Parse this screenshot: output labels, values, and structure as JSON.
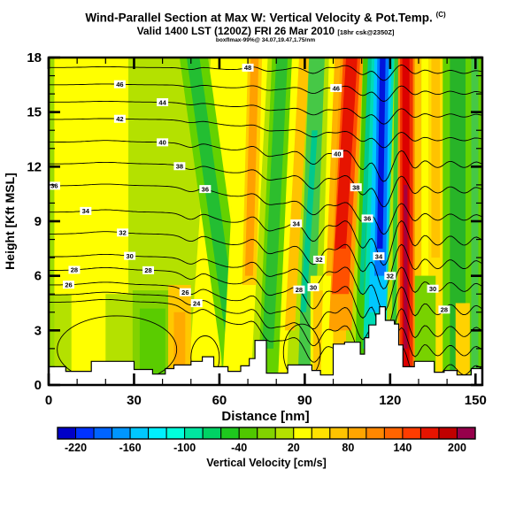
{
  "title": {
    "line1": "Wind-Parallel Section at Max W: Vertical Velocity & Pot.Temp.",
    "line1_sup": "(C)",
    "line2": "Valid 1400 LST (1200Z) FRI 26 Mar 2010",
    "line2_note": "[18hr csk@2350Z]",
    "line3": "boxflmax-99%@ 34.07,19.47,1.75/nm"
  },
  "axes": {
    "x_label": "Distance [nm]",
    "y_label": "Height [Kft MSL]",
    "x_ticks": [
      0,
      30,
      60,
      90,
      120,
      150
    ],
    "x_minor_ticks": [
      10,
      20,
      40,
      50,
      70,
      80,
      100,
      110,
      130,
      140
    ],
    "y_ticks": [
      0,
      3,
      6,
      9,
      12,
      15,
      18
    ],
    "y_minor_ticks": [
      1,
      2,
      4,
      5,
      7,
      8,
      10,
      11,
      13,
      14,
      16,
      17
    ]
  },
  "colorbar": {
    "caption": "Vertical Velocity [cm/s]",
    "min": -240,
    "max": 220,
    "step": 20,
    "colors": [
      "#0000C8",
      "#0032FF",
      "#0064FF",
      "#0096FF",
      "#00C8FF",
      "#00F0FF",
      "#00FFDC",
      "#00E6A0",
      "#00D264",
      "#1EC81E",
      "#50C800",
      "#82D200",
      "#B4E100",
      "#FFFF00",
      "#FFE100",
      "#FFC300",
      "#FFA500",
      "#FF8700",
      "#FF6400",
      "#FF3C00",
      "#E61400",
      "#C00000",
      "#96004B"
    ],
    "labels": [
      -220,
      -160,
      -100,
      -40,
      20,
      80,
      140,
      200
    ],
    "label_boundary_index": [
      1,
      4,
      7,
      10,
      13,
      16,
      19,
      22
    ]
  },
  "chart_data": {
    "type": "filled-contour-cross-section",
    "x_unit": "nm",
    "x_range": [
      0,
      152.4
    ],
    "y_unit": "Kft MSL",
    "y_range": [
      0,
      18
    ],
    "fill_field": "vertical velocity [cm/s]",
    "line_field": "potential temperature [C]",
    "background_color": "#B4E100",
    "stripes": [
      {
        "x0": 0,
        "x1": 2,
        "c": "#9CDC00"
      },
      {
        "x0": 2,
        "x1": 28,
        "c": "#FFFF00",
        "yb": 5.0
      },
      {
        "x0": 8,
        "x1": 20,
        "c": "#FFFF00",
        "yt": 5.2,
        "yb": 0
      },
      {
        "x0": 57,
        "x1": 68,
        "c": "#FFFF00",
        "dx": -8
      },
      {
        "x0": 29.5,
        "x1": 43.5,
        "c": "#82D200",
        "yt": 5.2,
        "yb": 0
      },
      {
        "x0": 32,
        "x1": 41,
        "c": "#5ACC00",
        "yt": 4.2,
        "yb": 0
      },
      {
        "x0": 46,
        "x1": 56,
        "c": "#64D200",
        "dx": 16
      },
      {
        "x0": 48.5,
        "x1": 53,
        "c": "#23BE32",
        "dx": 16
      },
      {
        "x0": 63.5,
        "x1": 67.5,
        "c": "#FFC800",
        "yt": 2.2,
        "yb": 0.6
      },
      {
        "x0": 42,
        "x1": 50,
        "c": "#FFC800",
        "yt": 5.5,
        "yb": 0
      },
      {
        "x0": 44,
        "x1": 48,
        "c": "#FFAA00",
        "yt": 4,
        "yb": 0
      },
      {
        "x0": 67,
        "x1": 77,
        "c": "#FFFF00",
        "dx": -6
      },
      {
        "x0": 70,
        "x1": 75,
        "c": "#FFCD00",
        "dx": -2,
        "yb": 5.5
      },
      {
        "x0": 71,
        "x1": 73.8,
        "c": "#FFA000",
        "dx": -2,
        "yb": 6
      },
      {
        "x0": 78.5,
        "x1": 86,
        "c": "#64D200",
        "dx": -5
      },
      {
        "x0": 80,
        "x1": 84,
        "c": "#2DBE2D",
        "dx": -5,
        "yb": 2
      },
      {
        "x0": 85.5,
        "x1": 88.5,
        "c": "#FFFF00",
        "dx": -5
      },
      {
        "x0": 88,
        "x1": 91.5,
        "c": "#FFC300",
        "dx": -5,
        "yb": 3
      },
      {
        "x0": 91.5,
        "x1": 97,
        "c": "#46C846",
        "dx": -4
      },
      {
        "x0": 92.5,
        "x1": 94.5,
        "c": "#00C88C",
        "dx": -4,
        "yt": 14,
        "yb": 4
      },
      {
        "x0": 92,
        "x1": 99.5,
        "c": "#F5F500",
        "yt": 6,
        "yb": 0
      },
      {
        "x0": 93,
        "x1": 98,
        "c": "#FFC800",
        "yt": 5.2,
        "yb": 0
      },
      {
        "x0": 98.5,
        "x1": 103,
        "c": "#FFFF00",
        "dx": -3
      },
      {
        "x0": 100.5,
        "x1": 103,
        "c": "#FFB400",
        "dx": -3,
        "yb": 6
      },
      {
        "x0": 100,
        "x1": 104.5,
        "c": "#FFC800",
        "yt": 4,
        "yb": 0
      },
      {
        "x0": 102.5,
        "x1": 110.5,
        "c": "#FFA000",
        "dx": -4,
        "yb": 3
      },
      {
        "x0": 103.5,
        "x1": 109.5,
        "c": "#FF5000",
        "dx": -4,
        "yb": 5
      },
      {
        "x0": 104.5,
        "x1": 108.5,
        "c": "#E61400",
        "dx": -4,
        "yb": 7.5
      },
      {
        "x0": 110.5,
        "x1": 113.5,
        "c": "#46C800",
        "dx": -3
      },
      {
        "x0": 112.2,
        "x1": 113.8,
        "c": "#00C88C",
        "dx": -3,
        "yb": 5
      },
      {
        "x0": 113.5,
        "x1": 121.5,
        "c": "#00DCB4",
        "dx": -3,
        "yb": 2
      },
      {
        "x0": 114.5,
        "x1": 120.5,
        "c": "#00C8FF",
        "dx": -2,
        "yb": 4
      },
      {
        "x0": 115.5,
        "x1": 119.5,
        "c": "#0078FF",
        "dx": -1,
        "yb": 6
      },
      {
        "x0": 116.4,
        "x1": 118.4,
        "c": "#0014DC",
        "dx": -1,
        "yb": 7.5
      },
      {
        "x0": 121.5,
        "x1": 123,
        "c": "#32C832",
        "dx": -1
      },
      {
        "x0": 122.8,
        "x1": 128.7,
        "c": "#FF8700"
      },
      {
        "x0": 123.5,
        "x1": 128,
        "c": "#F03200"
      },
      {
        "x0": 124.3,
        "x1": 126.8,
        "c": "#DC0000"
      },
      {
        "x0": 124.8,
        "x1": 126.1,
        "c": "#A8003C",
        "yt": 11,
        "yb": 2
      },
      {
        "x0": 128.7,
        "x1": 131,
        "c": "#FFC800",
        "yb": 6
      },
      {
        "x0": 131,
        "x1": 133.5,
        "c": "#FFFF00",
        "yb": 6
      },
      {
        "x0": 133.5,
        "x1": 138.5,
        "c": "#FFE100"
      },
      {
        "x0": 134.5,
        "x1": 137.5,
        "c": "#FFC300",
        "yb": 7
      },
      {
        "x0": 138.5,
        "x1": 152.4,
        "c": "#64D200"
      },
      {
        "x0": 141,
        "x1": 146.5,
        "c": "#28B428"
      },
      {
        "x0": 148.5,
        "x1": 151,
        "c": "#46C846"
      },
      {
        "x0": 128.7,
        "x1": 136,
        "c": "#78D200",
        "yt": 6,
        "yb": 0
      },
      {
        "x0": 143,
        "x1": 148,
        "c": "#FFD200",
        "yt": 4.5,
        "yb": 0
      }
    ],
    "contours": {
      "levels": [
        {
          "v": 48,
          "hL": 17.45,
          "hR": 17.2
        },
        {
          "v": 46,
          "hL": 16.5,
          "hR": 16.05
        },
        {
          "v": 44,
          "hL": 15.55,
          "hR": 14.8
        },
        {
          "v": 42,
          "hL": 14.6,
          "hR": 13.5
        },
        {
          "v": 40,
          "hL": 13.35,
          "hR": 12.1
        },
        {
          "v": 38,
          "hL": 12.15,
          "hR": 10.7
        },
        {
          "v": 36,
          "hL": 10.95,
          "hR": 9.2
        },
        {
          "v": 34,
          "hL": 9.5,
          "hR": 7.9
        },
        {
          "v": 32,
          "hL": 8.3,
          "hR": 6.6
        },
        {
          "v": 30,
          "hL": 7.05,
          "hR": 5.35
        },
        {
          "v": 28,
          "hL": 6.3,
          "hR": 4.1
        },
        {
          "v": 26,
          "hL": 5.5,
          "hR": 2.9
        },
        {
          "v": 24,
          "hL": 4.95,
          "hR": 1.85
        },
        {
          "v": 22,
          "hL": 4.55,
          "hR": 0.8
        }
      ],
      "bumps": [
        {
          "c": 20,
          "s": 6,
          "a": 0.1
        },
        {
          "c": 50,
          "s": 2.5,
          "a": -0.22
        },
        {
          "c": 54,
          "s": 2,
          "a": 0.12
        },
        {
          "c": 63,
          "s": 3,
          "a": -0.1
        },
        {
          "c": 72,
          "s": 2.2,
          "a": 0.3
        },
        {
          "c": 77,
          "s": 2,
          "a": -0.2
        },
        {
          "c": 87,
          "s": 2.5,
          "a": 0.35
        },
        {
          "c": 93,
          "s": 2.2,
          "a": -0.35
        },
        {
          "c": 98,
          "s": 2.2,
          "a": 0.45
        },
        {
          "c": 104.5,
          "s": 2.6,
          "a": 0.75
        },
        {
          "c": 110.5,
          "s": 2,
          "a": -0.45
        },
        {
          "c": 113.5,
          "s": 1.6,
          "a": 0.4
        },
        {
          "c": 117.8,
          "s": 2.2,
          "a": -1.05
        },
        {
          "c": 124,
          "s": 2.2,
          "a": 0.9
        },
        {
          "c": 128.5,
          "s": 1.8,
          "a": -0.35
        },
        {
          "c": 132,
          "s": 1.8,
          "a": 0.3
        },
        {
          "c": 137,
          "s": 2,
          "a": -0.2
        },
        {
          "c": 141,
          "s": 2,
          "a": 0.25
        },
        {
          "c": 146,
          "s": 2,
          "a": -0.18
        },
        {
          "c": 150,
          "s": 1.5,
          "a": 0.2
        }
      ]
    },
    "closed_contours": [
      {
        "cx": 24,
        "cy": 1.95,
        "rx": 21,
        "ry": 1.85
      },
      {
        "cx": 89,
        "cy": 1.8,
        "rx": 6.5,
        "ry": 1.55
      },
      {
        "cx": 55,
        "cy": 1.5,
        "rx": 5,
        "ry": 1.2
      }
    ],
    "contour_labels": [
      {
        "v": 46,
        "x": 25
      },
      {
        "v": 42,
        "x": 25
      },
      {
        "v": 48,
        "x": 70
      },
      {
        "v": 46,
        "x": 101
      },
      {
        "v": 44,
        "x": 40
      },
      {
        "v": 40,
        "x": 40
      },
      {
        "v": 38,
        "x": 46
      },
      {
        "v": 36,
        "x": 2
      },
      {
        "v": 36,
        "x": 55
      },
      {
        "v": 34,
        "x": 13
      },
      {
        "v": 32,
        "x": 26
      },
      {
        "v": 30,
        "x": 28.5
      },
      {
        "v": 28,
        "x": 9
      },
      {
        "v": 26,
        "x": 7
      },
      {
        "v": 28,
        "x": 35
      },
      {
        "v": 24,
        "x": 52
      },
      {
        "v": 34,
        "x": 87
      },
      {
        "v": 32,
        "x": 95
      },
      {
        "v": 30,
        "x": 93
      },
      {
        "v": 28,
        "x": 88
      },
      {
        "v": 40,
        "x": 101.5
      },
      {
        "v": 38,
        "x": 108
      },
      {
        "v": 36,
        "x": 112
      },
      {
        "v": 34,
        "x": 116
      },
      {
        "v": 32,
        "x": 120
      },
      {
        "v": 30,
        "x": 135
      },
      {
        "v": 28,
        "x": 139
      },
      {
        "v": 26,
        "x": 48
      }
    ],
    "terrain": {
      "end": 152.4,
      "steps": [
        [
          0,
          1.0
        ],
        [
          6,
          0.75
        ],
        [
          15,
          1.3
        ],
        [
          30,
          0.85
        ],
        [
          36.5,
          0.6
        ],
        [
          41,
          0.9
        ],
        [
          44,
          1.1
        ],
        [
          50,
          1.3
        ],
        [
          54,
          1.55
        ],
        [
          58,
          1.0
        ],
        [
          63,
          0.75
        ],
        [
          67.5,
          1.05
        ],
        [
          70.5,
          1.45
        ],
        [
          72.5,
          2.45
        ],
        [
          76.5,
          0.65
        ],
        [
          84,
          1.1
        ],
        [
          92.5,
          0.8
        ],
        [
          95.5,
          0.55
        ],
        [
          100,
          2.25
        ],
        [
          104,
          2.35
        ],
        [
          109.5,
          1.7
        ],
        [
          111,
          2.6
        ],
        [
          112.5,
          3.3
        ],
        [
          115,
          3.9
        ],
        [
          116.3,
          4.3
        ],
        [
          118.3,
          3.55
        ],
        [
          121.5,
          3.35
        ],
        [
          123,
          2.2
        ],
        [
          124.5,
          1.0
        ],
        [
          128.5,
          1.3
        ],
        [
          135.5,
          0.7
        ],
        [
          139,
          0.8
        ],
        [
          143.5,
          0.55
        ],
        [
          148.5,
          0.9
        ]
      ]
    }
  }
}
